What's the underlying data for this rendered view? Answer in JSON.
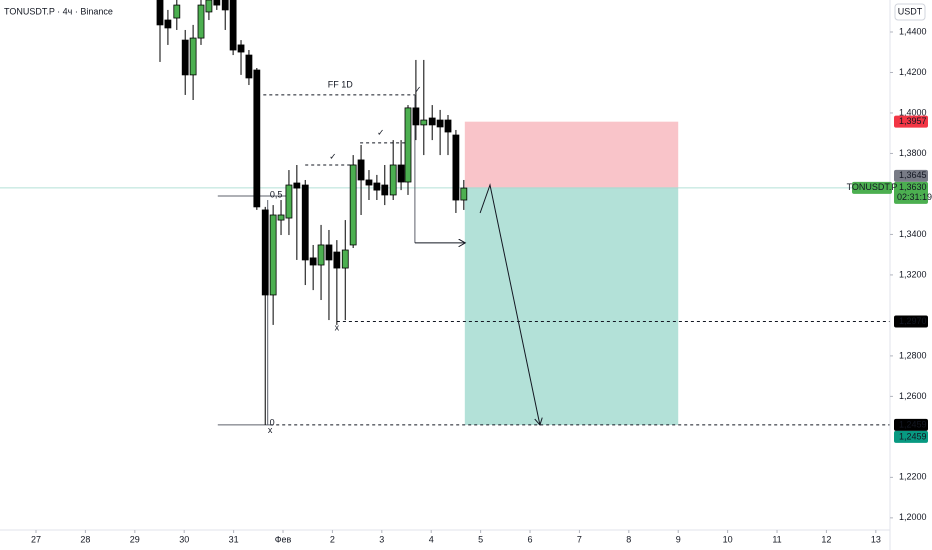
{
  "chart_data": {
    "type": "candlestick",
    "title": "TONUSDT.P · 4ч · Binance",
    "currency": "USDT",
    "x": [
      2.51,
      2.67,
      2.85,
      3.02,
      3.18,
      3.34,
      3.5,
      3.66,
      3.83,
      3.99,
      4.15,
      4.31,
      4.47,
      4.64,
      4.8,
      4.96,
      5.12,
      5.28,
      5.45,
      5.61,
      5.77,
      5.93,
      6.09,
      6.26,
      6.42,
      6.58,
      6.74,
      6.9,
      7.06,
      7.23,
      7.39,
      7.53,
      7.69,
      7.85,
      8.02,
      8.18,
      8.34,
      8.5,
      8.66
    ],
    "open": [
      1.4558,
      1.4459,
      1.4469,
      1.436,
      1.4188,
      1.437,
      1.4499,
      1.4558,
      1.4558,
      1.4558,
      1.4336,
      1.4286,
      1.4212,
      1.3521,
      1.3101,
      1.3471,
      1.3481,
      1.3654,
      1.3644,
      1.3284,
      1.3249,
      1.3348,
      1.3313,
      1.3234,
      1.3348,
      1.3768,
      1.3669,
      1.3654,
      1.3644,
      1.3595,
      1.3743,
      1.3659,
      1.4025,
      1.3941,
      1.3975,
      1.3965,
      1.3965,
      1.3891,
      1.357
    ],
    "high": [
      1.4558,
      1.4509,
      1.4558,
      1.441,
      1.4435,
      1.4558,
      1.4558,
      1.4558,
      1.4558,
      1.4558,
      1.436,
      1.4311,
      1.4222,
      1.3536,
      1.3545,
      1.357,
      1.3718,
      1.3743,
      1.3669,
      1.3348,
      1.3447,
      1.3422,
      1.3372,
      1.3471,
      1.3792,
      1.3842,
      1.3718,
      1.3694,
      1.3743,
      1.3866,
      1.3866,
      1.4039,
      1.4262,
      1.4262,
      1.4039,
      1.4015,
      1.399,
      1.3916,
      1.3669
    ],
    "low": [
      1.4252,
      1.4336,
      1.441,
      1.4089,
      1.4064,
      1.4336,
      1.4459,
      1.4509,
      1.441,
      1.4286,
      1.4188,
      1.4138,
      1.3521,
      1.2459,
      1.2953,
      1.3397,
      1.3397,
      1.3274,
      1.315,
      1.3125,
      1.3076,
      1.2977,
      1.2953,
      1.2977,
      1.3333,
      1.3496,
      1.357,
      1.357,
      1.3545,
      1.357,
      1.3619,
      1.3595,
      1.3866,
      1.3792,
      1.3866,
      1.3792,
      1.3792,
      1.3506,
      1.3521
    ],
    "close": [
      1.4435,
      1.442,
      1.4533,
      1.4188,
      1.437,
      1.4533,
      1.4558,
      1.4533,
      1.4509,
      1.4311,
      1.4301,
      1.4173,
      1.3536,
      1.3101,
      1.3496,
      1.3496,
      1.3644,
      1.3629,
      1.3274,
      1.3249,
      1.3348,
      1.3274,
      1.3234,
      1.3323,
      1.3743,
      1.3669,
      1.3644,
      1.3619,
      1.3595,
      1.3743,
      1.3659,
      1.4025,
      1.3941,
      1.3965,
      1.3941,
      1.3931,
      1.3906,
      1.357,
      1.3629
    ],
    "up_color": "#4caf50",
    "down_color": "#000000",
    "xlim": [
      -0.729,
      17.287
    ],
    "ylim": [
      1.194,
      1.4558
    ],
    "xticks": [
      {
        "value": 0,
        "label": "27"
      },
      {
        "value": 1,
        "label": "28"
      },
      {
        "value": 2,
        "label": "29"
      },
      {
        "value": 3,
        "label": "30"
      },
      {
        "value": 4,
        "label": "31"
      },
      {
        "value": 5,
        "label": "Фев"
      },
      {
        "value": 6,
        "label": "2"
      },
      {
        "value": 7,
        "label": "3"
      },
      {
        "value": 8,
        "label": "4"
      },
      {
        "value": 9,
        "label": "5"
      },
      {
        "value": 10,
        "label": "6"
      },
      {
        "value": 11,
        "label": "7"
      },
      {
        "value": 12,
        "label": "8"
      },
      {
        "value": 13,
        "label": "9"
      },
      {
        "value": 14,
        "label": "10"
      },
      {
        "value": 15,
        "label": "11"
      },
      {
        "value": 16,
        "label": "12"
      },
      {
        "value": 17,
        "label": "13"
      }
    ],
    "yticks": [
      {
        "value": 1.44,
        "label": "1,4400"
      },
      {
        "value": 1.42,
        "label": "1,4200"
      },
      {
        "value": 1.4,
        "label": "1,4000"
      },
      {
        "value": 1.38,
        "label": "1,3800"
      },
      {
        "value": 1.34,
        "label": "1,3400"
      },
      {
        "value": 1.32,
        "label": "1,3200"
      },
      {
        "value": 1.28,
        "label": "1,2800"
      },
      {
        "value": 1.26,
        "label": "1,2600"
      },
      {
        "value": 1.22,
        "label": "1,2200"
      },
      {
        "value": 1.2,
        "label": "1,2000"
      }
    ],
    "position": {
      "x": [
        8.68,
        13.0
      ],
      "entry": 1.363,
      "stop": 1.3957,
      "target": 1.2459,
      "stop_color": "#f9c4c9",
      "target_color": "#b3e1d8"
    },
    "current_price_line": {
      "value": 1.363,
      "color": "#b3e1d8"
    },
    "price_labels": [
      {
        "value": 1.3957,
        "label": "1,3957",
        "color": "#f23645"
      },
      {
        "value": 1.3645,
        "label": "1,3645",
        "color": "#787b86"
      },
      {
        "value": 1.363,
        "label": "1,3630",
        "color": "#4caf50",
        "tag": "TONUSDT.P",
        "countdown": "02:31:19"
      },
      {
        "value": 1.297,
        "label": "1,2970",
        "color": "#000000"
      },
      {
        "value": 1.2459,
        "label": "1,2459",
        "color": "#000000"
      },
      {
        "value": 1.2459,
        "label": "1,2459",
        "color": "#089981"
      }
    ],
    "lines": [
      {
        "x": [
          4.6,
          7.67
        ],
        "y": [
          1.4089,
          1.4089
        ],
        "dash": true
      },
      {
        "x": [
          5.45,
          6.46
        ],
        "y": [
          1.3743,
          1.3743
        ],
        "dash": true
      },
      {
        "x": [
          6.56,
          7.47
        ],
        "y": [
          1.3852,
          1.3852
        ],
        "dash": true
      },
      {
        "x": [
          3.68,
          5.14
        ],
        "y": [
          1.359,
          1.359
        ],
        "dash": false
      },
      {
        "x": [
          3.68,
          4.74
        ],
        "y": [
          1.2459,
          1.2459
        ],
        "dash": false
      },
      {
        "x": [
          4.69,
          4.69
        ],
        "y": [
          1.357,
          1.2459
        ],
        "dash": false
      },
      {
        "x": [
          6.09,
          17.287
        ],
        "y": [
          1.297,
          1.297
        ],
        "dash": true
      },
      {
        "x": [
          4.74,
          17.287
        ],
        "y": [
          1.2459,
          1.2459
        ],
        "dash": true
      },
      {
        "x": [
          7.67,
          7.67
        ],
        "y": [
          1.4089,
          1.3358
        ],
        "dash": false
      },
      {
        "x": [
          7.67,
          8.69
        ],
        "y": [
          1.3358,
          1.3358
        ],
        "dash": false,
        "arrow": true
      },
      {
        "x": [
          8.99,
          9.19,
          10.2
        ],
        "y": [
          1.3506,
          1.3644,
          1.2459
        ],
        "dash": false,
        "arrow": true
      }
    ],
    "annotations": [
      {
        "text": "FF 1D",
        "x": 6.16,
        "y": 1.4138
      },
      {
        "text": "✓",
        "x": 6.01,
        "y": 1.3782
      },
      {
        "text": "✓",
        "x": 6.98,
        "y": 1.3901
      },
      {
        "text": "✓",
        "x": 7.73,
        "y": 1.4113
      },
      {
        "text": "0,5",
        "x": 4.86,
        "y": 1.3595
      },
      {
        "text": "0",
        "x": 4.78,
        "y": 1.2469
      },
      {
        "text": "x",
        "x": 6.09,
        "y": 1.2938
      },
      {
        "text": "x",
        "x": 4.74,
        "y": 1.243
      }
    ]
  }
}
